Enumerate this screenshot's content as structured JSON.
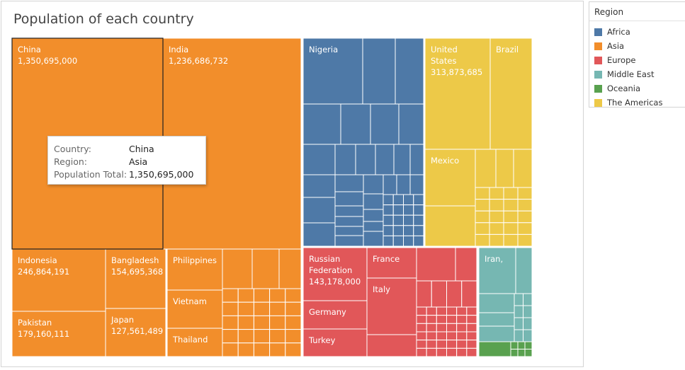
{
  "chart_data": {
    "type": "treemap",
    "title": "Population of each country",
    "measure": "Population Total",
    "legend": {
      "title": "Region",
      "placement": "top-right",
      "items": [
        {
          "name": "Africa",
          "color": "#4e79a7"
        },
        {
          "name": "Asia",
          "color": "#f28e2b"
        },
        {
          "name": "Europe",
          "color": "#e15759"
        },
        {
          "name": "Middle East",
          "color": "#76b7b2"
        },
        {
          "name": "Oceania",
          "color": "#59a14f"
        },
        {
          "name": "The Americas",
          "color": "#edc948"
        }
      ]
    },
    "labeled_countries": [
      {
        "name": "China",
        "region": "Asia",
        "value": "1,350,695,000"
      },
      {
        "name": "India",
        "region": "Asia",
        "value": "1,236,686,732"
      },
      {
        "name": "Indonesia",
        "region": "Asia",
        "value": "246,864,191"
      },
      {
        "name": "Bangladesh",
        "region": "Asia",
        "value": "154,695,368"
      },
      {
        "name": "Pakistan",
        "region": "Asia",
        "value": "179,160,111"
      },
      {
        "name": "Japan",
        "region": "Asia",
        "value": "127,561,489"
      },
      {
        "name": "Philippines",
        "region": "Asia",
        "value": ""
      },
      {
        "name": "Vietnam",
        "region": "Asia",
        "value": ""
      },
      {
        "name": "Thailand",
        "region": "Asia",
        "value": ""
      },
      {
        "name": "Nigeria",
        "region": "Africa",
        "value": ""
      },
      {
        "name": "United States",
        "region": "The Americas",
        "value": "313,873,685"
      },
      {
        "name": "Brazil",
        "region": "The Americas",
        "value": ""
      },
      {
        "name": "Mexico",
        "region": "The Americas",
        "value": ""
      },
      {
        "name": "Russian Federation",
        "region": "Europe",
        "value": "143,178,000"
      },
      {
        "name": "France",
        "region": "Europe",
        "value": ""
      },
      {
        "name": "Germany",
        "region": "Europe",
        "value": ""
      },
      {
        "name": "Italy",
        "region": "Europe",
        "value": ""
      },
      {
        "name": "Turkey",
        "region": "Europe",
        "value": ""
      },
      {
        "name": "Iran,",
        "region": "Middle East",
        "value": ""
      }
    ]
  },
  "tooltip": {
    "rows": [
      {
        "key": "Country:",
        "value": "China"
      },
      {
        "key": "Region:",
        "value": "Asia"
      },
      {
        "key": "Population Total:",
        "value": "1,350,695,000"
      }
    ]
  }
}
